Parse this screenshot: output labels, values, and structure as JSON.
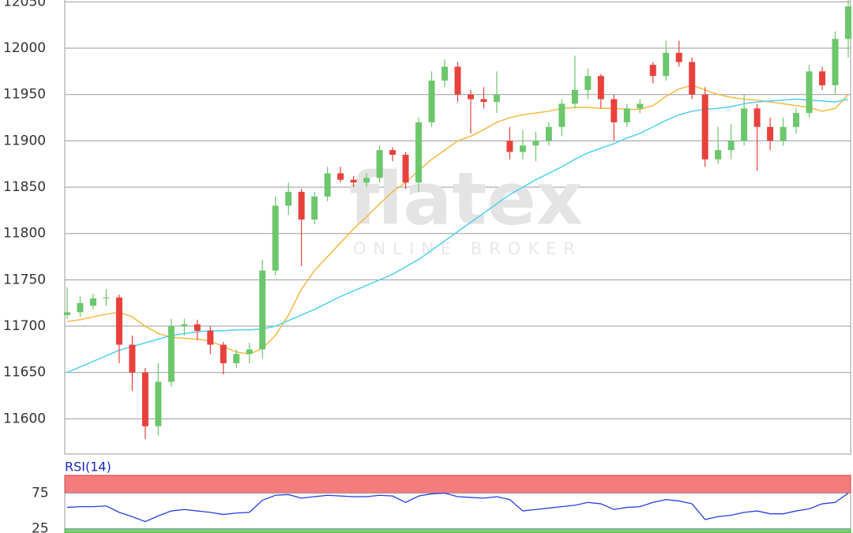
{
  "watermark": {
    "brand": "flatex",
    "tagline": "ONLINE BROKER"
  },
  "chart_data": [
    {
      "type": "candlestick",
      "ylim": [
        11562,
        12052
      ],
      "yticks": [
        11600,
        11650,
        11700,
        11750,
        11800,
        11850,
        11900,
        11950,
        12000,
        12050
      ],
      "grid": true,
      "up_color": "#6cc76c",
      "down_color": "#e8413c",
      "ohlc": [
        [
          11712,
          11742,
          11708,
          11715
        ],
        [
          11715,
          11732,
          11710,
          11725
        ],
        [
          11722,
          11735,
          11718,
          11730
        ],
        [
          11730,
          11740,
          11722,
          11731
        ],
        [
          11731,
          11734,
          11660,
          11680
        ],
        [
          11680,
          11690,
          11630,
          11650
        ],
        [
          11650,
          11655,
          11578,
          11592
        ],
        [
          11592,
          11660,
          11582,
          11640
        ],
        [
          11640,
          11708,
          11635,
          11700
        ],
        [
          11700,
          11708,
          11690,
          11702
        ],
        [
          11702,
          11707,
          11685,
          11695
        ],
        [
          11695,
          11700,
          11670,
          11680
        ],
        [
          11680,
          11683,
          11648,
          11660
        ],
        [
          11660,
          11675,
          11655,
          11670
        ],
        [
          11670,
          11682,
          11660,
          11675
        ],
        [
          11675,
          11772,
          11665,
          11760
        ],
        [
          11760,
          11840,
          11755,
          11830
        ],
        [
          11830,
          11855,
          11820,
          11845
        ],
        [
          11845,
          11848,
          11765,
          11815
        ],
        [
          11815,
          11845,
          11810,
          11840
        ],
        [
          11840,
          11872,
          11835,
          11865
        ],
        [
          11865,
          11872,
          11855,
          11858
        ],
        [
          11858,
          11862,
          11850,
          11855
        ],
        [
          11855,
          11865,
          11850,
          11860
        ],
        [
          11860,
          11895,
          11855,
          11890
        ],
        [
          11890,
          11893,
          11878,
          11885
        ],
        [
          11885,
          11888,
          11848,
          11855
        ],
        [
          11855,
          11925,
          11845,
          11920
        ],
        [
          11920,
          11975,
          11915,
          11965
        ],
        [
          11965,
          11988,
          11958,
          11980
        ],
        [
          11980,
          11985,
          11942,
          11950
        ],
        [
          11950,
          11955,
          11908,
          11945
        ],
        [
          11945,
          11958,
          11935,
          11942
        ],
        [
          11942,
          11975,
          11930,
          11950
        ],
        [
          11900,
          11915,
          11880,
          11888
        ],
        [
          11888,
          11912,
          11880,
          11895
        ],
        [
          11895,
          11910,
          11878,
          11900
        ],
        [
          11900,
          11920,
          11895,
          11915
        ],
        [
          11915,
          11945,
          11905,
          11940
        ],
        [
          11940,
          11992,
          11935,
          11955
        ],
        [
          11955,
          11978,
          11945,
          11970
        ],
        [
          11970,
          11972,
          11935,
          11945
        ],
        [
          11945,
          11950,
          11900,
          11920
        ],
        [
          11920,
          11940,
          11915,
          11935
        ],
        [
          11935,
          11945,
          11930,
          11940
        ],
        [
          11982,
          11985,
          11962,
          11970
        ],
        [
          11970,
          12008,
          11965,
          11995
        ],
        [
          11995,
          12008,
          11980,
          11985
        ],
        [
          11985,
          11990,
          11945,
          11950
        ],
        [
          11950,
          11958,
          11872,
          11880
        ],
        [
          11880,
          11915,
          11875,
          11890
        ],
        [
          11890,
          11918,
          11880,
          11900
        ],
        [
          11900,
          11950,
          11895,
          11935
        ],
        [
          11935,
          11940,
          11868,
          11915
        ],
        [
          11915,
          11925,
          11890,
          11900
        ],
        [
          11900,
          11925,
          11895,
          11915
        ],
        [
          11915,
          11935,
          11908,
          11930
        ],
        [
          11930,
          11982,
          11925,
          11975
        ],
        [
          11975,
          11980,
          11955,
          11960
        ],
        [
          11960,
          12018,
          11950,
          12010
        ],
        [
          12010,
          12052,
          11990,
          12045
        ]
      ],
      "overlays": [
        {
          "color": "#f5b942",
          "values": [
            11705,
            11707,
            11710,
            11713,
            11715,
            11710,
            11700,
            11692,
            11688,
            11687,
            11686,
            11684,
            11678,
            11672,
            11670,
            11676,
            11690,
            11712,
            11740,
            11760,
            11775,
            11790,
            11805,
            11818,
            11832,
            11845,
            11855,
            11868,
            11880,
            11890,
            11900,
            11905,
            11912,
            11920,
            11925,
            11928,
            11930,
            11932,
            11935,
            11936,
            11936,
            11935,
            11935,
            11934,
            11934,
            11938,
            11948,
            11956,
            11960,
            11955,
            11950,
            11947,
            11945,
            11944,
            11942,
            11940,
            11938,
            11936,
            11932,
            11935,
            11950
          ]
        },
        {
          "color": "#4fd0f0",
          "values": [
            11650,
            11656,
            11662,
            11668,
            11674,
            11678,
            11682,
            11686,
            11690,
            11692,
            11694,
            11695,
            11695,
            11696,
            11696,
            11697,
            11700,
            11706,
            11712,
            11718,
            11725,
            11732,
            11738,
            11744,
            11750,
            11756,
            11764,
            11772,
            11782,
            11792,
            11802,
            11812,
            11822,
            11832,
            11842,
            11850,
            11858,
            11865,
            11872,
            11880,
            11887,
            11892,
            11897,
            11903,
            11908,
            11915,
            11922,
            11928,
            11932,
            11934,
            11935,
            11937,
            11940,
            11942,
            11943,
            11944,
            11945,
            11944,
            11943,
            11942,
            11945
          ]
        }
      ]
    },
    {
      "type": "line",
      "title": "RSI(14)",
      "ylim": [
        19,
        100
      ],
      "yticks": [
        25,
        75
      ],
      "color": "#2a3de0",
      "overbought_zone": [
        75,
        100
      ],
      "overbought_color": "#f47c7c",
      "oversold_zone": [
        19,
        25
      ],
      "oversold_color": "#7bd07b",
      "values": [
        55,
        56,
        56,
        57,
        48,
        42,
        35,
        43,
        50,
        52,
        50,
        48,
        45,
        47,
        48,
        65,
        72,
        73,
        68,
        70,
        72,
        71,
        70,
        70,
        72,
        71,
        62,
        71,
        74,
        75,
        70,
        69,
        68,
        70,
        66,
        50,
        52,
        54,
        56,
        58,
        62,
        60,
        52,
        55,
        56,
        62,
        66,
        64,
        60,
        38,
        42,
        44,
        48,
        50,
        46,
        46,
        50,
        53,
        60,
        62,
        75
      ]
    }
  ]
}
